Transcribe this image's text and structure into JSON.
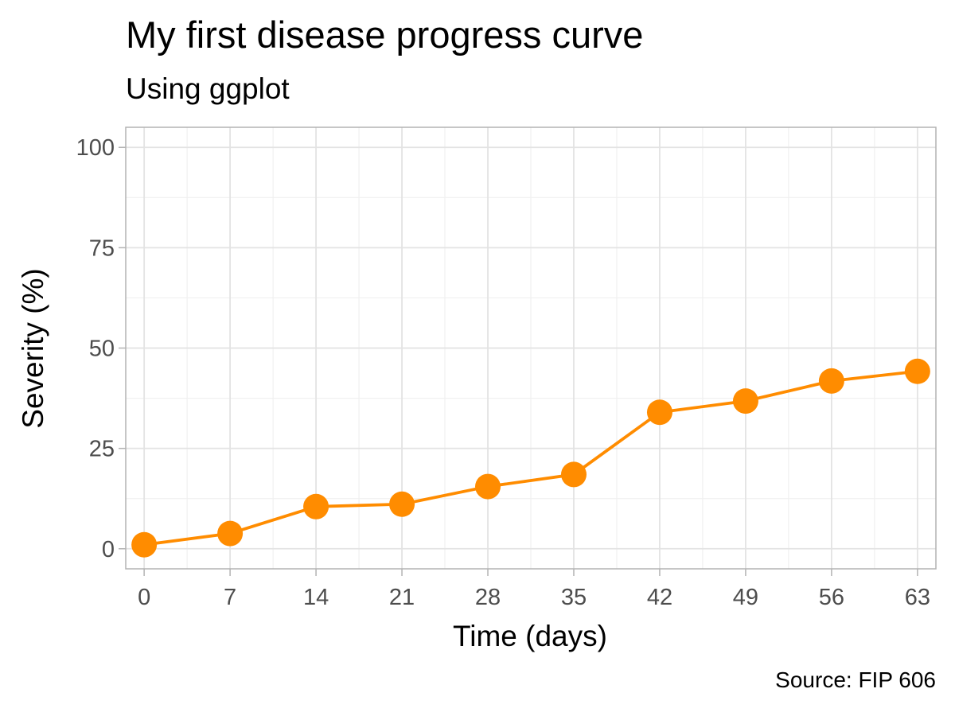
{
  "chart_data": {
    "type": "line",
    "title": "My first disease progress curve",
    "subtitle": "Using ggplot",
    "caption": "Source: FIP 606",
    "xlabel": "Time (days)",
    "ylabel": "Severity (%)",
    "xlim": [
      -1.5,
      64.5
    ],
    "ylim": [
      -5,
      105
    ],
    "x_ticks": [
      0,
      7,
      14,
      21,
      28,
      35,
      42,
      49,
      56,
      63
    ],
    "y_ticks": [
      0,
      25,
      50,
      75,
      100
    ],
    "grid": true,
    "legend": "none",
    "series": [
      {
        "color": "#FF8C00",
        "x": [
          0,
          7,
          14,
          21,
          28,
          35,
          42,
          49,
          56,
          63
        ],
        "y": [
          1,
          3.8,
          10.5,
          11.1,
          15.5,
          18.5,
          34,
          36.8,
          41.8,
          44.2
        ]
      }
    ]
  }
}
